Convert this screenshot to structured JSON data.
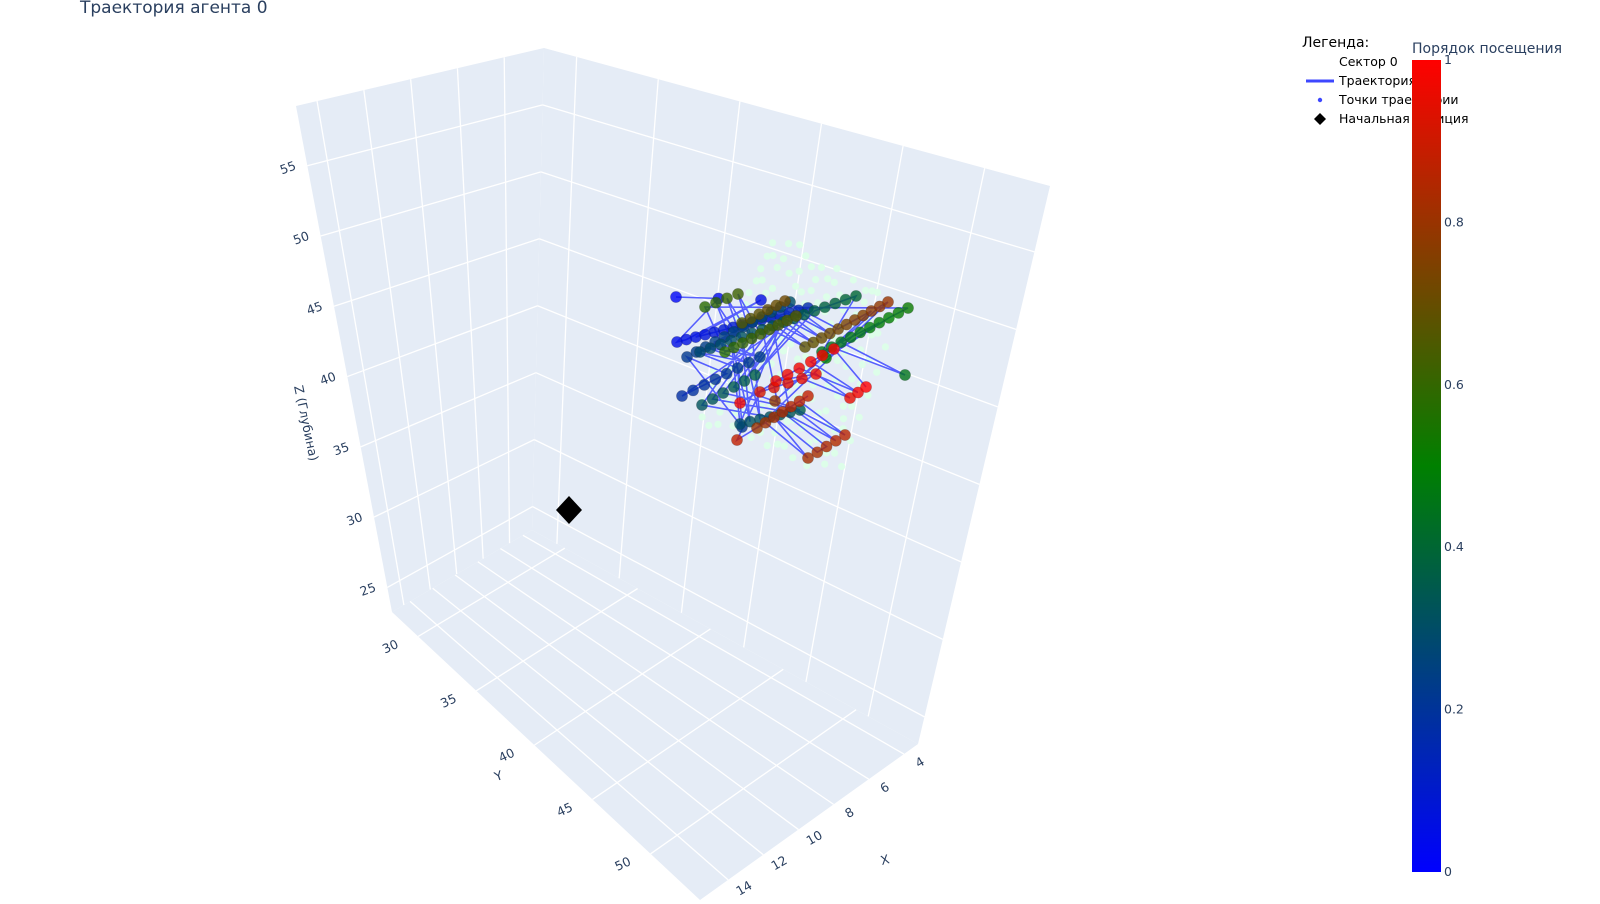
{
  "chart_data": {
    "type": "scatter3d",
    "title": "Траектория агента 0",
    "axes": {
      "x": {
        "label": "X",
        "ticks": [
          4,
          6,
          8,
          10,
          12,
          14
        ]
      },
      "y": {
        "label": "Y",
        "ticks": [
          30,
          35,
          40,
          45,
          50
        ]
      },
      "z": {
        "label": "Z (Глубина)",
        "ticks": [
          25,
          30,
          35,
          40,
          45,
          50,
          55
        ]
      }
    },
    "legend": {
      "title": "Легенда:",
      "placement": "top-right",
      "items": [
        {
          "label": "Сектор 0",
          "marker": "none"
        },
        {
          "label": "Траектория",
          "marker": "line",
          "color": "#3d47ff"
        },
        {
          "label": "Точки траектории",
          "marker": "dot",
          "color": "#3d47ff"
        },
        {
          "label": "Начальная позиция",
          "marker": "diamond",
          "color": "#000000"
        }
      ]
    },
    "colorbar": {
      "title": "Порядок посещения",
      "ticks": [
        "0",
        "0.2",
        "0.4",
        "0.6",
        "0.8",
        "1"
      ],
      "colors": [
        "#0000ff",
        "#008000",
        "#ff0000"
      ]
    },
    "colors": {
      "scene_background": "#e5ecf6",
      "grid": "#ffffff",
      "trajectory_line": "#3d47ff",
      "sector_points": "#dcffe8",
      "start_marker": "#000000",
      "axis_text": "#2a3f5f"
    }
  }
}
